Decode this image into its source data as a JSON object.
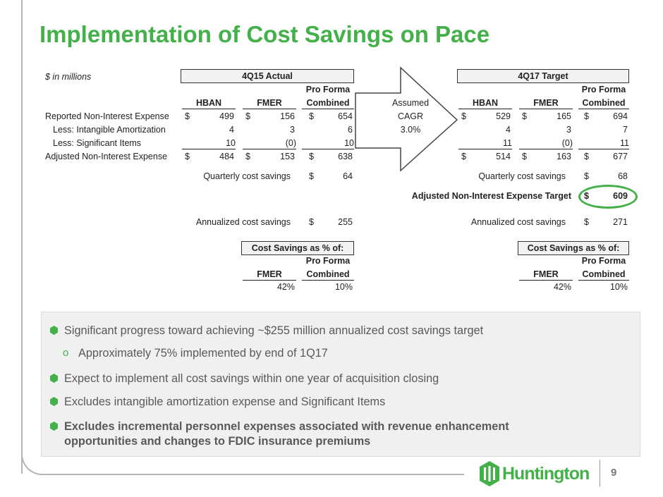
{
  "title": "Implementation of Cost Savings on Pace",
  "units_note": "$ in millions",
  "actual": {
    "header": "4Q15 Actual",
    "col_hban": "HBAN",
    "col_fmer": "FMER",
    "col_pf_1": "Pro Forma",
    "col_pf_2": "Combined",
    "rows": [
      {
        "label": "Reported Non-Interest Expense",
        "cur1": "$",
        "hban": "499",
        "cur2": "$",
        "fmer": "156",
        "cur3": "$",
        "pf": "654"
      },
      {
        "label": "Less: Intangible Amortization",
        "cur1": "",
        "hban": "4",
        "cur2": "",
        "fmer": "3",
        "cur3": "",
        "pf": "6"
      },
      {
        "label": "Less: Significant Items",
        "cur1": "",
        "hban": "10",
        "cur2": "",
        "fmer": "(0)",
        "cur3": "",
        "pf": "10"
      },
      {
        "label": "Adjusted Non-Interest Expense",
        "cur1": "$",
        "hban": "484",
        "cur2": "$",
        "fmer": "153",
        "cur3": "$",
        "pf": "638"
      }
    ],
    "quarterly_label": "Quarterly cost savings",
    "quarterly_cur": "$",
    "quarterly_value": "64",
    "annualized_label": "Annualized cost savings",
    "annualized_cur": "$",
    "annualized_value": "255",
    "savings_header": "Cost Savings as % of:",
    "savings_col_fmer": "FMER",
    "savings_col_pf_1": "Pro Forma",
    "savings_col_pf_2": "Combined",
    "savings_fmer": "42%",
    "savings_pf": "10%"
  },
  "arrow": {
    "line1": "Assumed",
    "line2": "CAGR",
    "line3": "3.0%"
  },
  "target": {
    "header": "4Q17 Target",
    "col_hban": "HBAN",
    "col_fmer": "FMER",
    "col_pf_1": "Pro Forma",
    "col_pf_2": "Combined",
    "rows": [
      {
        "cur1": "$",
        "hban": "529",
        "cur2": "$",
        "fmer": "165",
        "cur3": "$",
        "pf": "694"
      },
      {
        "cur1": "",
        "hban": "4",
        "cur2": "",
        "fmer": "3",
        "cur3": "",
        "pf": "7"
      },
      {
        "cur1": "",
        "hban": "11",
        "cur2": "",
        "fmer": "(0)",
        "cur3": "",
        "pf": "11"
      },
      {
        "cur1": "$",
        "hban": "514",
        "cur2": "$",
        "fmer": "163",
        "cur3": "$",
        "pf": "677"
      }
    ],
    "quarterly_label": "Quarterly cost savings",
    "quarterly_cur": "$",
    "quarterly_value": "68",
    "adjusted_target_label": "Adjusted Non-Interest Expense Target",
    "adjusted_target_cur": "$",
    "adjusted_target_value": "609",
    "annualized_label": "Annualized cost savings",
    "annualized_cur": "$",
    "annualized_value": "271",
    "savings_header": "Cost Savings as % of:",
    "savings_col_fmer": "FMER",
    "savings_col_pf_1": "Pro Forma",
    "savings_col_pf_2": "Combined",
    "savings_fmer": "42%",
    "savings_pf": "10%"
  },
  "bullets": [
    {
      "text": "Significant progress toward achieving ~$255 million annualized cost savings target",
      "bold": false
    },
    {
      "text": "Approximately 75% implemented by end of 1Q17",
      "bold": false,
      "sub": true
    },
    {
      "text": "Expect to implement all cost savings within one year of acquisition closing",
      "bold": false
    },
    {
      "text": "Excludes intangible amortization expense and Significant Items",
      "bold": false
    },
    {
      "text": "Excludes incremental personnel expenses associated with revenue enhancement",
      "bold": true
    },
    {
      "text": "opportunities and changes to FDIC insurance premiums",
      "bold": true
    }
  ],
  "colors": {
    "accent": "#44b04a",
    "text_gray": "#595959"
  },
  "logo": {
    "icon": "huntington-logo-icon",
    "text": "Huntington"
  },
  "page_number": "9"
}
